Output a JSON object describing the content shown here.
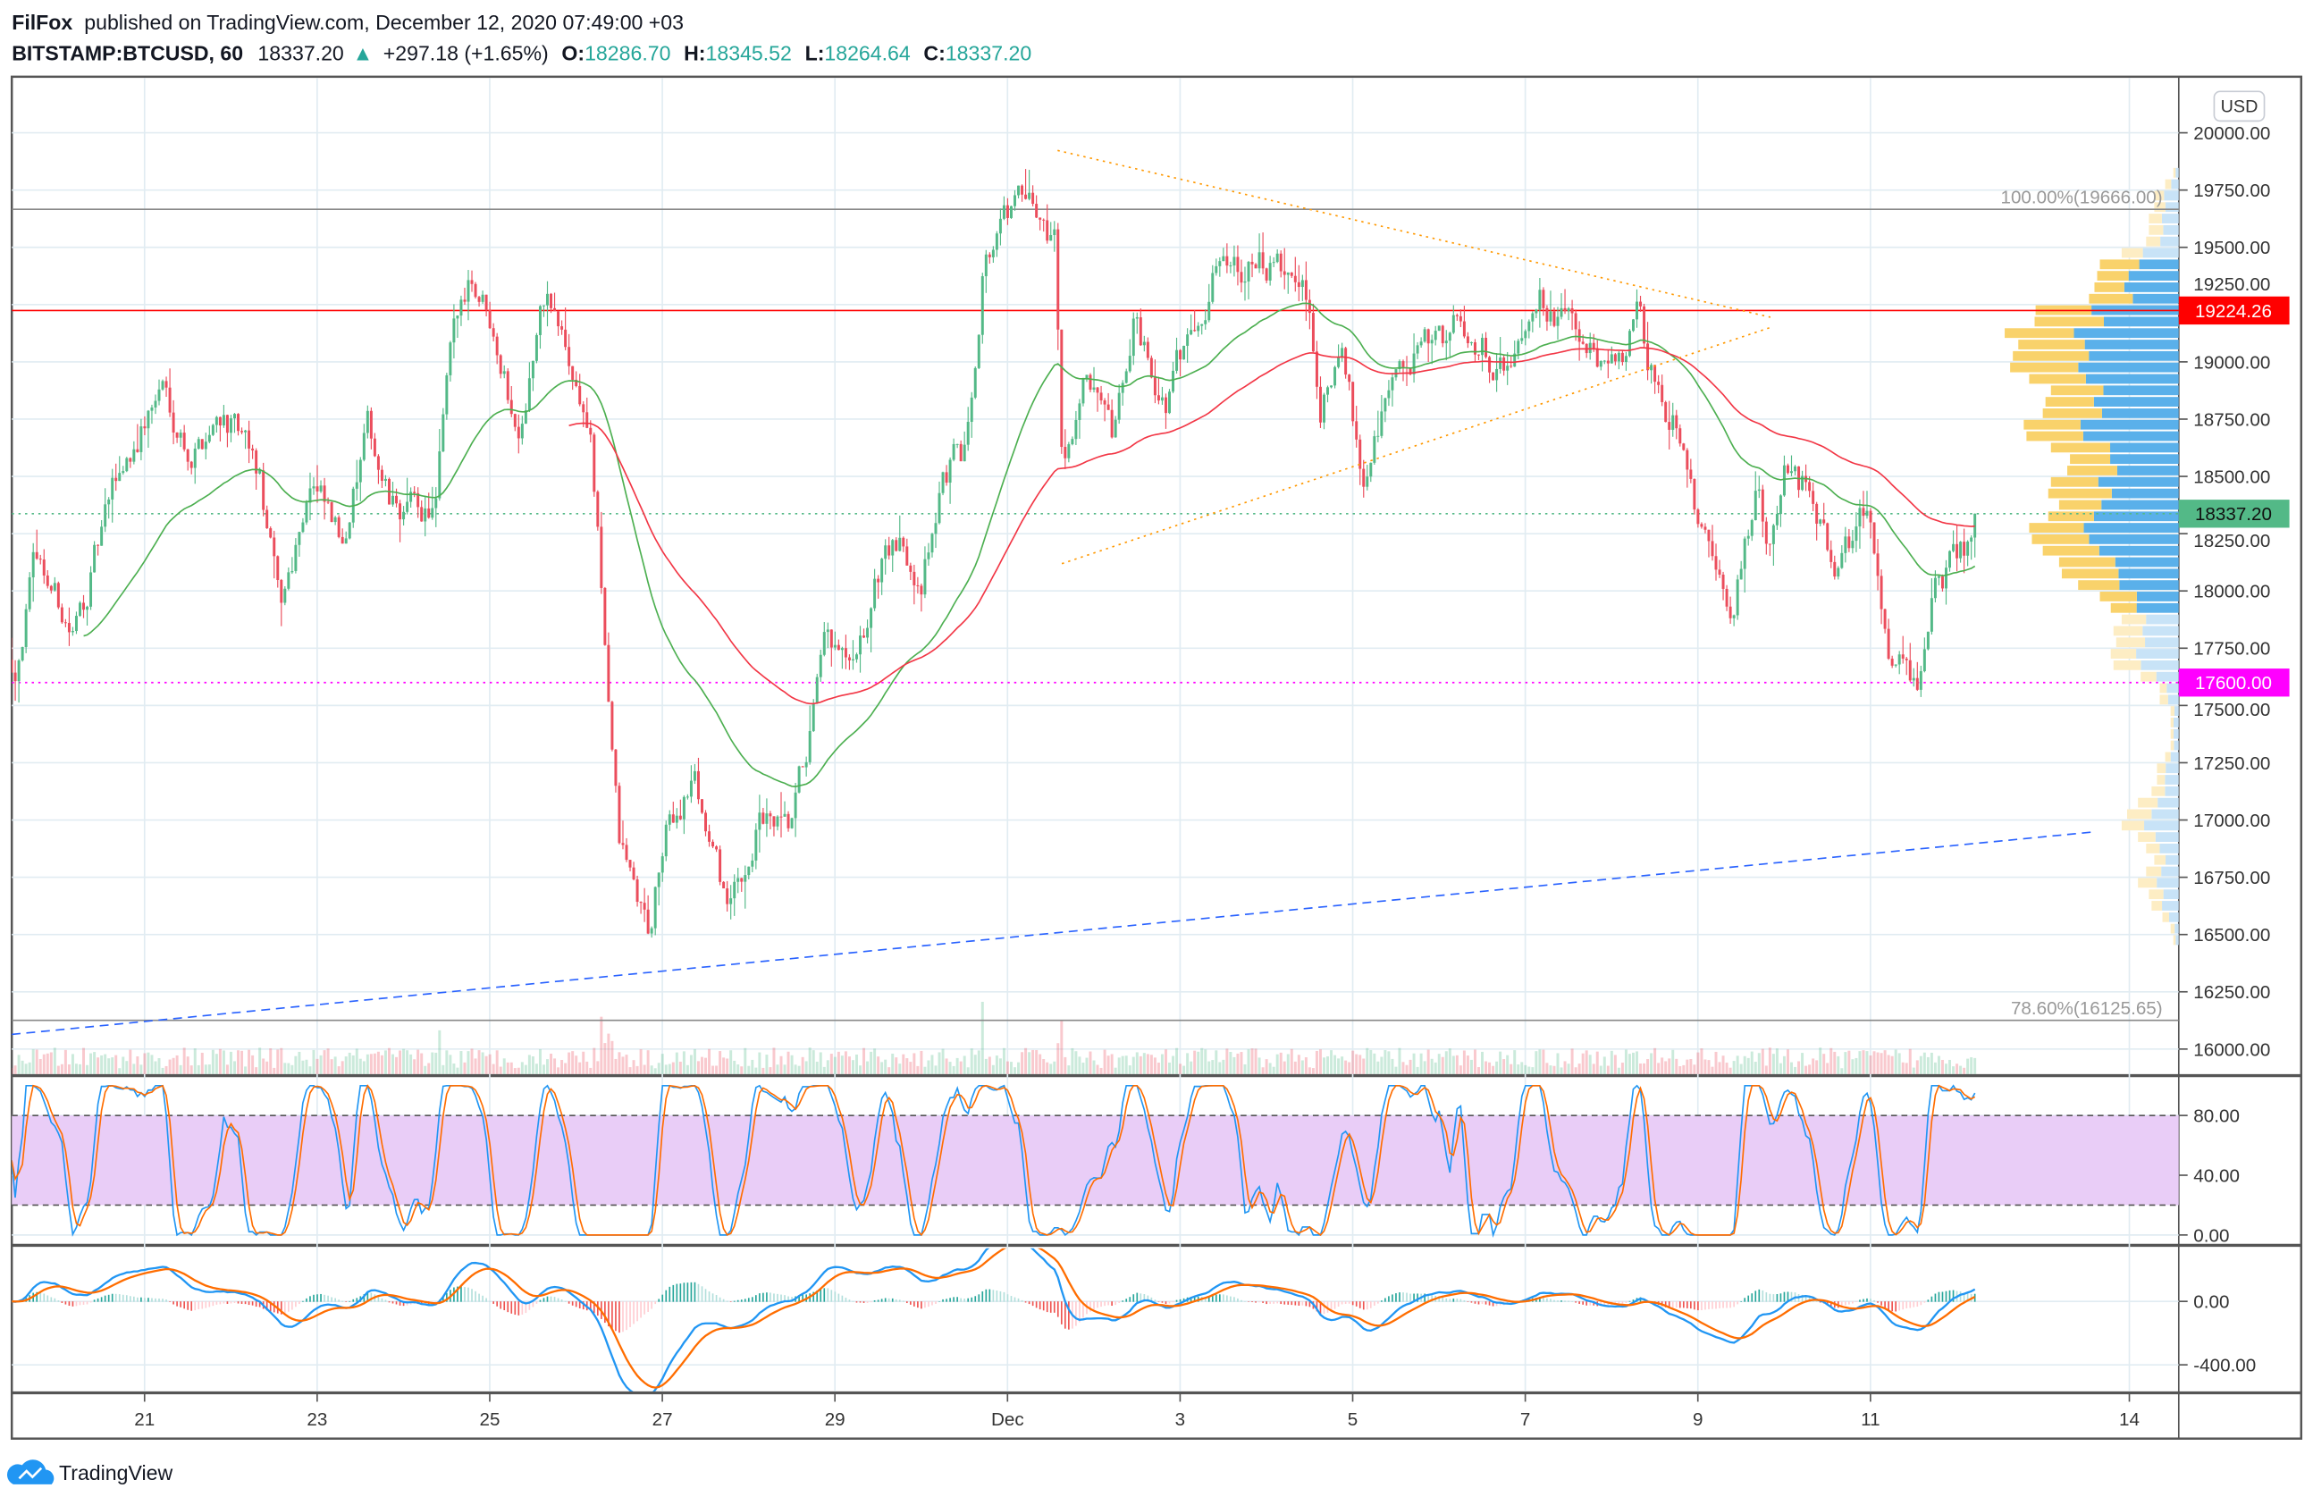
{
  "header": {
    "publisher": "FilFox",
    "published_text": "published on TradingView.com, December 12, 2020 07:49:00 +03",
    "symbol": "BITSTAMP:BTCUSD, 60",
    "last": "18337.20",
    "change": "+297.18 (+1.65%)",
    "o_label": "O:",
    "o": "18286.70",
    "h_label": "H:",
    "h": "18345.52",
    "l_label": "L:",
    "l": "18264.64",
    "c_label": "C:",
    "c": "18337.20"
  },
  "currency_button": "USD",
  "footer": {
    "brand": "TradingView"
  },
  "colors": {
    "up": "#53b987",
    "down": "#eb4d5c",
    "ma_fast": "#4caf50",
    "ma_slow": "#f23645",
    "stoch_k": "#2196f3",
    "stoch_d": "#ff6d00",
    "stoch_band": "#e9cdf7",
    "vp_up": "#f9d26b",
    "vp_down": "#5ab0ea",
    "last_price": "#53b987",
    "resistance": "#ff0000",
    "support": "#ff00ff",
    "fib": "#888888",
    "triangle": "#ff9800",
    "trend": "#2962ff"
  },
  "chart_data": {
    "type": "candlestick",
    "title": "BITSTAMP:BTCUSD, 60",
    "time_unit_note": "t = day index (Nov 21 = 21, Dec 1 = 31)",
    "x_ticks": [
      {
        "t": 21,
        "label": "21"
      },
      {
        "t": 23,
        "label": "23"
      },
      {
        "t": 25,
        "label": "25"
      },
      {
        "t": 27,
        "label": "27"
      },
      {
        "t": 29,
        "label": "29"
      },
      {
        "t": 31,
        "label": "Dec"
      },
      {
        "t": 33,
        "label": "3"
      },
      {
        "t": 35,
        "label": "5"
      },
      {
        "t": 37,
        "label": "7"
      },
      {
        "t": 39,
        "label": "9"
      },
      {
        "t": 41,
        "label": "11"
      },
      {
        "t": 44,
        "label": "14"
      }
    ],
    "y_range": [
      15900,
      20250
    ],
    "y_ticks": [
      "20000.00",
      "19750.00",
      "19500.00",
      "19250.00",
      "19000.00",
      "18750.00",
      "18500.00",
      "18250.00",
      "18000.00",
      "17750.00",
      "17500.00",
      "17250.00",
      "17000.00",
      "16750.00",
      "16500.00",
      "16250.00",
      "16000.00"
    ],
    "price_path": [
      [
        19.5,
        17700
      ],
      [
        19.75,
        18150
      ],
      [
        20.18,
        17800
      ],
      [
        20.69,
        18500
      ],
      [
        21.21,
        18900
      ],
      [
        21.55,
        18600
      ],
      [
        21.89,
        18800
      ],
      [
        22.32,
        18500
      ],
      [
        22.57,
        17900
      ],
      [
        22.91,
        18500
      ],
      [
        23.26,
        18200
      ],
      [
        23.6,
        18700
      ],
      [
        23.85,
        18350
      ],
      [
        24.37,
        18350
      ],
      [
        24.54,
        19000
      ],
      [
        24.76,
        19400
      ],
      [
        25.05,
        19200
      ],
      [
        25.31,
        18700
      ],
      [
        25.65,
        19300
      ],
      [
        25.91,
        19000
      ],
      [
        26.16,
        18700
      ],
      [
        26.33,
        17800
      ],
      [
        26.5,
        16900
      ],
      [
        26.85,
        16500
      ],
      [
        27.02,
        16900
      ],
      [
        27.36,
        17200
      ],
      [
        27.62,
        16800
      ],
      [
        27.79,
        16600
      ],
      [
        28.13,
        17000
      ],
      [
        28.47,
        16900
      ],
      [
        28.73,
        17400
      ],
      [
        28.9,
        17750
      ],
      [
        29.24,
        17600
      ],
      [
        29.58,
        18200
      ],
      [
        30.01,
        18100
      ],
      [
        30.26,
        18500
      ],
      [
        30.52,
        18600
      ],
      [
        30.73,
        19500
      ],
      [
        31.12,
        19700
      ],
      [
        31.55,
        19550
      ],
      [
        31.63,
        18600
      ],
      [
        31.89,
        18900
      ],
      [
        32.23,
        18600
      ],
      [
        32.49,
        19200
      ],
      [
        32.83,
        18800
      ],
      [
        33.17,
        19200
      ],
      [
        33.51,
        19500
      ],
      [
        34.03,
        19400
      ],
      [
        34.45,
        19300
      ],
      [
        34.62,
        18800
      ],
      [
        34.88,
        19000
      ],
      [
        35.14,
        18500
      ],
      [
        35.39,
        18900
      ],
      [
        35.74,
        19000
      ],
      [
        36.16,
        19150
      ],
      [
        36.5,
        19100
      ],
      [
        36.76,
        18950
      ],
      [
        37.1,
        19350
      ],
      [
        37.62,
        19100
      ],
      [
        37.96,
        18900
      ],
      [
        38.3,
        19200
      ],
      [
        38.56,
        18800
      ],
      [
        38.81,
        18700
      ],
      [
        39.07,
        18200
      ],
      [
        39.41,
        17900
      ],
      [
        39.67,
        18450
      ],
      [
        39.84,
        18150
      ],
      [
        40.01,
        18550
      ],
      [
        40.35,
        18400
      ],
      [
        40.61,
        18100
      ],
      [
        40.95,
        18350
      ],
      [
        41.21,
        17800
      ],
      [
        41.55,
        17600
      ],
      [
        41.72,
        18000
      ],
      [
        42.06,
        18150
      ],
      [
        42.23,
        18337.2
      ]
    ],
    "levels": [
      {
        "price": 19666.0,
        "label": "100.00%(19666.00)",
        "kind": "fib"
      },
      {
        "price": 16125.65,
        "label": "78.60%(16125.65)",
        "kind": "fib"
      },
      {
        "price": 19224.26,
        "label": "19224.26",
        "kind": "resistance"
      },
      {
        "price": 17600.0,
        "label": "17600.00",
        "kind": "support"
      },
      {
        "price": 18337.2,
        "label": "18337.20",
        "kind": "last_price"
      }
    ],
    "trendlines": [
      {
        "kind": "triangle",
        "from": [
          31.58,
          19923
        ],
        "to": [
          39.84,
          19195
        ]
      },
      {
        "kind": "triangle",
        "from": [
          31.63,
          18119
        ],
        "to": [
          39.84,
          19150
        ]
      },
      {
        "kind": "trend",
        "from": [
          19.46,
          16064
        ],
        "to": [
          43.56,
          16947
        ]
      }
    ],
    "stoch_rsi": {
      "ticks": [
        "80.00",
        "40.00",
        "0.00"
      ],
      "upper": 80,
      "lower": 20
    },
    "macd": {
      "ticks": [
        "0.00",
        "-400.00"
      ]
    }
  }
}
